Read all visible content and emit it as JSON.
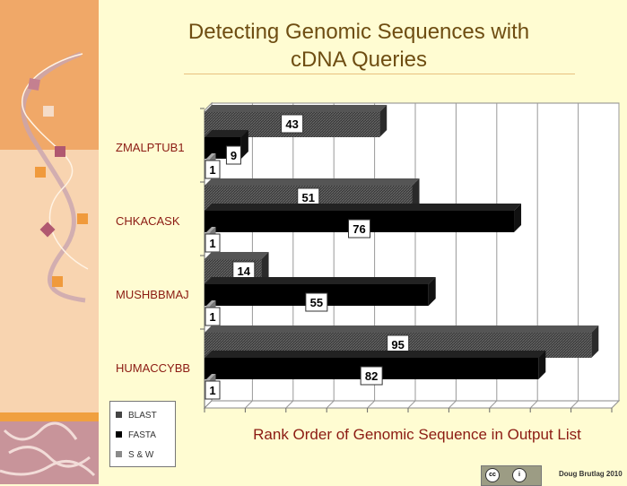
{
  "slide": {
    "title_line1": "Detecting Genomic Sequences with",
    "title_line2": "cDNA Queries",
    "credit": "Doug Brutlag 2010",
    "license_badge": "cc-by-icon"
  },
  "colors": {
    "background": "#fffcd2",
    "side_top": "#f0a868",
    "side_bottom": "#f8d4b0",
    "category_text": "#8b1a12",
    "title_text": "#6e4d12"
  },
  "chart_data": {
    "type": "bar",
    "orientation": "horizontal",
    "style": "3d",
    "title": "",
    "xlabel": "Rank Order of Genomic Sequence in Output List",
    "ylabel": "",
    "xlim": [
      0,
      100
    ],
    "grid": true,
    "tick_labels_shown": false,
    "legend_position": "bottom-left",
    "categories": [
      "ZMALPTUB1",
      "CHKACASK",
      "MUSHBBMAJ",
      "HUMACCYBB"
    ],
    "series": [
      {
        "name": "BLAST",
        "color": "#444444",
        "values": [
          43,
          51,
          14,
          95
        ]
      },
      {
        "name": "FASTA",
        "color": "#000000",
        "values": [
          9,
          76,
          55,
          82
        ]
      },
      {
        "name": "S & W",
        "color": "#8a8a8a",
        "values": [
          1,
          1,
          1,
          1
        ]
      }
    ]
  }
}
